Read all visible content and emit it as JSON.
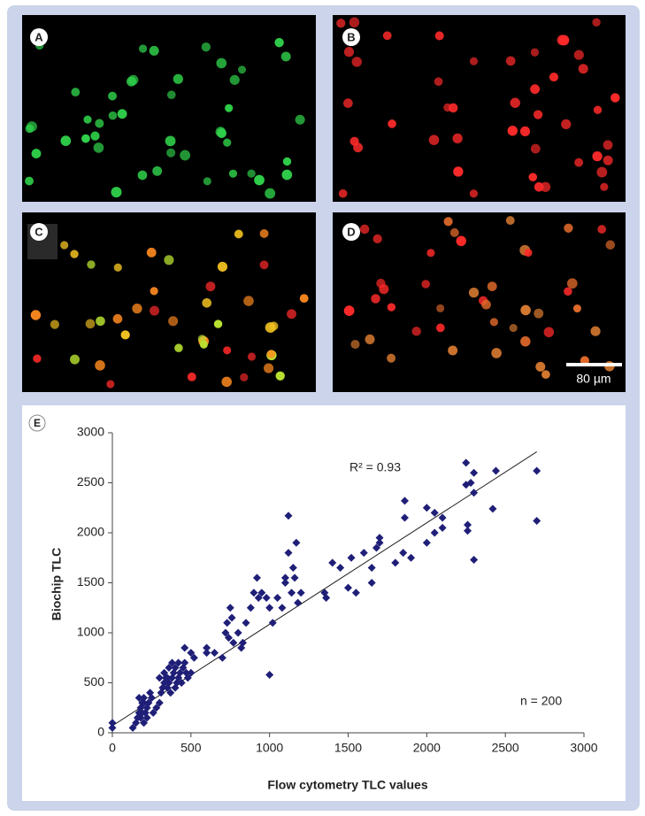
{
  "panels": {
    "labels": [
      "A",
      "B",
      "C",
      "D",
      "E"
    ],
    "scale_bar": "80 µm"
  },
  "chart_data": {
    "type": "scatter",
    "x_label": "Flow cytometry TLC values",
    "y_label": "Biochip TLC",
    "annotations": [
      "R² = 0.93",
      "n = 200"
    ],
    "color": "#1f1f78",
    "x": [
      0,
      0,
      130,
      150,
      160,
      170,
      180,
      190,
      200,
      180,
      200,
      210,
      220,
      230,
      240,
      250,
      200,
      170,
      190,
      220,
      260,
      280,
      300,
      310,
      320,
      330,
      340,
      350,
      360,
      370,
      380,
      390,
      400,
      410,
      420,
      430,
      440,
      450,
      460,
      470,
      480,
      400,
      350,
      300,
      330,
      360,
      380,
      420,
      460,
      500,
      500,
      520,
      600,
      600,
      650,
      700,
      720,
      730,
      740,
      750,
      760,
      770,
      800,
      820,
      830,
      850,
      880,
      900,
      920,
      930,
      950,
      980,
      1000,
      1000,
      1020,
      1050,
      1080,
      1100,
      1100,
      1120,
      1120,
      1140,
      1150,
      1160,
      1170,
      1180,
      1200,
      1350,
      1360,
      1400,
      1450,
      1500,
      1520,
      1550,
      1600,
      1650,
      1650,
      1680,
      1700,
      1700,
      1800,
      1850,
      1860,
      1860,
      1900,
      2000,
      2000,
      2050,
      2050,
      2100,
      2100,
      2250,
      2250,
      2260,
      2260,
      2280,
      2300,
      2300,
      2300,
      2420,
      2440,
      2700,
      2700
    ],
    "values": [
      100,
      50,
      50,
      100,
      150,
      200,
      250,
      300,
      350,
      150,
      100,
      200,
      250,
      300,
      400,
      350,
      300,
      350,
      200,
      150,
      200,
      250,
      300,
      400,
      450,
      500,
      550,
      450,
      500,
      400,
      550,
      600,
      650,
      500,
      550,
      600,
      500,
      650,
      700,
      600,
      550,
      450,
      550,
      550,
      600,
      650,
      700,
      700,
      850,
      800,
      600,
      750,
      800,
      850,
      800,
      750,
      1000,
      1100,
      950,
      1250,
      1150,
      900,
      1000,
      850,
      900,
      1100,
      1250,
      1400,
      1550,
      1350,
      1400,
      1350,
      1250,
      580,
      1100,
      1350,
      1250,
      1500,
      1550,
      2170,
      1800,
      1400,
      1650,
      1550,
      1900,
      1300,
      1400,
      1400,
      1350,
      1700,
      1650,
      1450,
      1750,
      1400,
      1800,
      1500,
      1650,
      1850,
      1950,
      1900,
      1700,
      1800,
      2320,
      2150,
      1750,
      2250,
      1900,
      2000,
      2200,
      2050,
      2150,
      2700,
      2480,
      2080,
      2020,
      2500,
      2400,
      2600,
      1730,
      2240,
      2620,
      2620,
      2120
    ],
    "fit": {
      "x": [
        0,
        2700
      ],
      "values": [
        70,
        2810
      ]
    },
    "xlim": [
      0,
      3000
    ],
    "ylim": [
      0,
      3000
    ],
    "xticks": [
      0,
      500,
      1000,
      1500,
      2000,
      2500,
      3000
    ],
    "yticks": [
      0,
      500,
      1000,
      1500,
      2000,
      2500,
      3000
    ]
  }
}
